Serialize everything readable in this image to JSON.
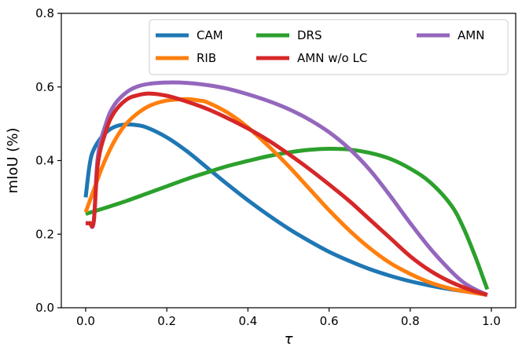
{
  "chart_data": {
    "type": "line",
    "title": "",
    "xlabel": "τ",
    "ylabel": "mIoU (%)",
    "xlim": [
      -0.06,
      1.06
    ],
    "ylim": [
      0.0,
      0.8
    ],
    "xticks": [
      0.0,
      0.2,
      0.4,
      0.6,
      0.8,
      1.0
    ],
    "xtick_labels": [
      "0.0",
      "0.2",
      "0.4",
      "0.6",
      "0.8",
      "1.0"
    ],
    "yticks": [
      0.0,
      0.2,
      0.4,
      0.6,
      0.8
    ],
    "ytick_labels": [
      "0.0",
      "0.2",
      "0.4",
      "0.6",
      "0.8"
    ],
    "grid": false,
    "legend": {
      "position": "top-right",
      "columns": 3
    },
    "series": [
      {
        "name": "CAM",
        "color": "#1f77b4",
        "x": [
          0.0,
          0.01,
          0.02,
          0.04,
          0.06,
          0.08,
          0.1,
          0.12,
          0.15,
          0.2,
          0.25,
          0.3,
          0.35,
          0.4,
          0.45,
          0.5,
          0.55,
          0.6,
          0.65,
          0.7,
          0.75,
          0.8,
          0.85,
          0.9,
          0.95,
          0.99
        ],
        "y": [
          0.3,
          0.39,
          0.43,
          0.465,
          0.485,
          0.495,
          0.498,
          0.497,
          0.49,
          0.463,
          0.425,
          0.38,
          0.335,
          0.292,
          0.252,
          0.215,
          0.182,
          0.152,
          0.127,
          0.105,
          0.087,
          0.072,
          0.06,
          0.05,
          0.042,
          0.035
        ]
      },
      {
        "name": "DRS",
        "color": "#2ca02c",
        "x": [
          0.0,
          0.05,
          0.1,
          0.15,
          0.2,
          0.25,
          0.3,
          0.35,
          0.4,
          0.45,
          0.5,
          0.55,
          0.6,
          0.65,
          0.7,
          0.75,
          0.8,
          0.85,
          0.9,
          0.93,
          0.96,
          0.98,
          0.99
        ],
        "y": [
          0.255,
          0.272,
          0.29,
          0.31,
          0.33,
          0.35,
          0.368,
          0.385,
          0.399,
          0.412,
          0.422,
          0.429,
          0.432,
          0.43,
          0.421,
          0.405,
          0.378,
          0.34,
          0.28,
          0.22,
          0.14,
          0.08,
          0.05
        ]
      },
      {
        "name": "AMN",
        "color": "#9467bd",
        "x": [
          0.0,
          0.01,
          0.02,
          0.03,
          0.05,
          0.07,
          0.1,
          0.13,
          0.16,
          0.2,
          0.25,
          0.3,
          0.35,
          0.4,
          0.45,
          0.5,
          0.55,
          0.6,
          0.65,
          0.7,
          0.75,
          0.8,
          0.85,
          0.9,
          0.93,
          0.96,
          0.99
        ],
        "y": [
          0.23,
          0.23,
          0.235,
          0.41,
          0.5,
          0.55,
          0.585,
          0.602,
          0.609,
          0.612,
          0.611,
          0.605,
          0.595,
          0.58,
          0.562,
          0.54,
          0.512,
          0.477,
          0.432,
          0.375,
          0.305,
          0.23,
          0.16,
          0.1,
          0.07,
          0.05,
          0.035
        ]
      },
      {
        "name": "RIB",
        "color": "#ff7f0e",
        "x": [
          0.0,
          0.02,
          0.04,
          0.06,
          0.08,
          0.1,
          0.13,
          0.16,
          0.2,
          0.25,
          0.28,
          0.3,
          0.35,
          0.4,
          0.45,
          0.5,
          0.55,
          0.6,
          0.65,
          0.7,
          0.75,
          0.8,
          0.85,
          0.9,
          0.95,
          0.99
        ],
        "y": [
          0.26,
          0.32,
          0.38,
          0.43,
          0.47,
          0.5,
          0.53,
          0.55,
          0.563,
          0.567,
          0.563,
          0.558,
          0.53,
          0.49,
          0.44,
          0.385,
          0.325,
          0.265,
          0.21,
          0.162,
          0.122,
          0.092,
          0.068,
          0.052,
          0.042,
          0.035
        ]
      },
      {
        "name": "AMN w/o LC",
        "color": "#d62728",
        "x": [
          0.0,
          0.01,
          0.02,
          0.03,
          0.05,
          0.07,
          0.1,
          0.13,
          0.16,
          0.2,
          0.25,
          0.3,
          0.35,
          0.4,
          0.45,
          0.5,
          0.55,
          0.6,
          0.65,
          0.7,
          0.75,
          0.8,
          0.85,
          0.9,
          0.95,
          0.99
        ],
        "y": [
          0.23,
          0.23,
          0.235,
          0.39,
          0.48,
          0.53,
          0.565,
          0.578,
          0.582,
          0.576,
          0.56,
          0.54,
          0.515,
          0.487,
          0.455,
          0.418,
          0.378,
          0.335,
          0.29,
          0.24,
          0.19,
          0.14,
          0.1,
          0.07,
          0.048,
          0.035
        ]
      }
    ],
    "legend_order": [
      "CAM",
      "DRS",
      "AMN",
      "RIB",
      "AMN w/o LC"
    ]
  }
}
